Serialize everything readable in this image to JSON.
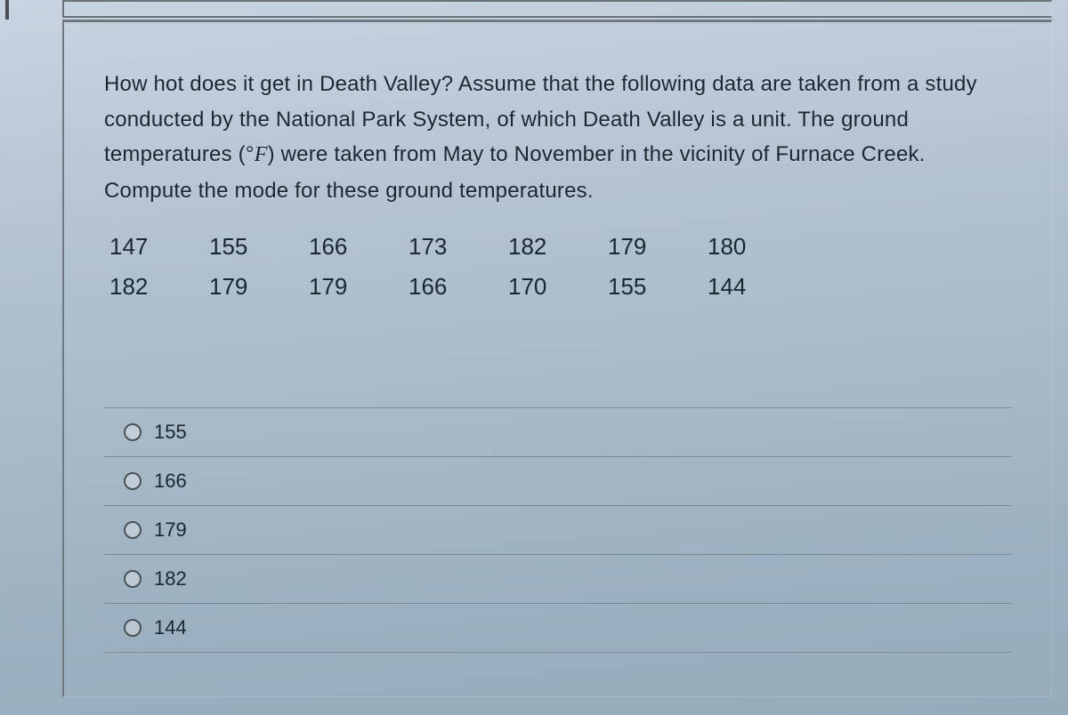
{
  "question": {
    "text_pre": "How hot does it get in Death Valley? Assume that the following data are taken from a study conducted by the National Park System, of which Death Valley is a unit. The ground temperatures ",
    "unit_open": "(",
    "unit_degree": "°",
    "unit_F": "F",
    "unit_close": ")",
    "text_post": " were taken from May to November in the vicinity of Furnace Creek. Compute the mode for these ground temperatures."
  },
  "data": {
    "row1": [
      "147",
      "155",
      "166",
      "173",
      "182",
      "179",
      "180"
    ],
    "row2": [
      "182",
      "179",
      "179",
      "166",
      "170",
      "155",
      "144"
    ]
  },
  "options": [
    {
      "label": "155"
    },
    {
      "label": "166"
    },
    {
      "label": "179"
    },
    {
      "label": "182"
    },
    {
      "label": "144"
    }
  ],
  "style": {
    "text_color": "#1b2730",
    "border_color": "#6f7a80",
    "option_divider": "#7b8a93",
    "question_fontsize": 24,
    "data_fontsize": 26,
    "option_fontsize": 22
  }
}
